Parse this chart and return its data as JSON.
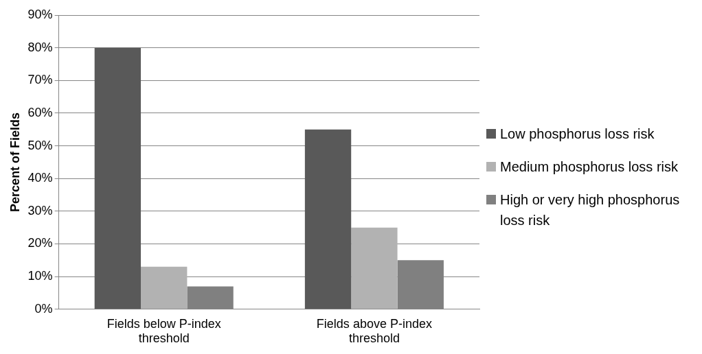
{
  "chart_data": {
    "type": "bar",
    "ylabel": "Percent of Fields",
    "categories": [
      "Fields below P-index threshold",
      "Fields above P-index threshold"
    ],
    "series": [
      {
        "name": "Low phosphorus loss risk",
        "color": "#595959",
        "values": [
          80,
          55
        ]
      },
      {
        "name": "Medium phosphorus loss risk",
        "color": "#b2b2b2",
        "values": [
          13,
          25
        ]
      },
      {
        "name": "High or very high phosphorus loss risk",
        "color": "#808080",
        "values": [
          7,
          15
        ]
      }
    ],
    "ylim": [
      0,
      90
    ],
    "yticks": [
      {
        "value": 0,
        "label": "0%"
      },
      {
        "value": 10,
        "label": "10%"
      },
      {
        "value": 20,
        "label": "20%"
      },
      {
        "value": 30,
        "label": "30%"
      },
      {
        "value": 40,
        "label": "40%"
      },
      {
        "value": 50,
        "label": "50%"
      },
      {
        "value": 60,
        "label": "60%"
      },
      {
        "value": 70,
        "label": "70%"
      },
      {
        "value": 80,
        "label": "80%"
      },
      {
        "value": 90,
        "label": "90%"
      }
    ],
    "grid": "y",
    "legend": "right"
  }
}
